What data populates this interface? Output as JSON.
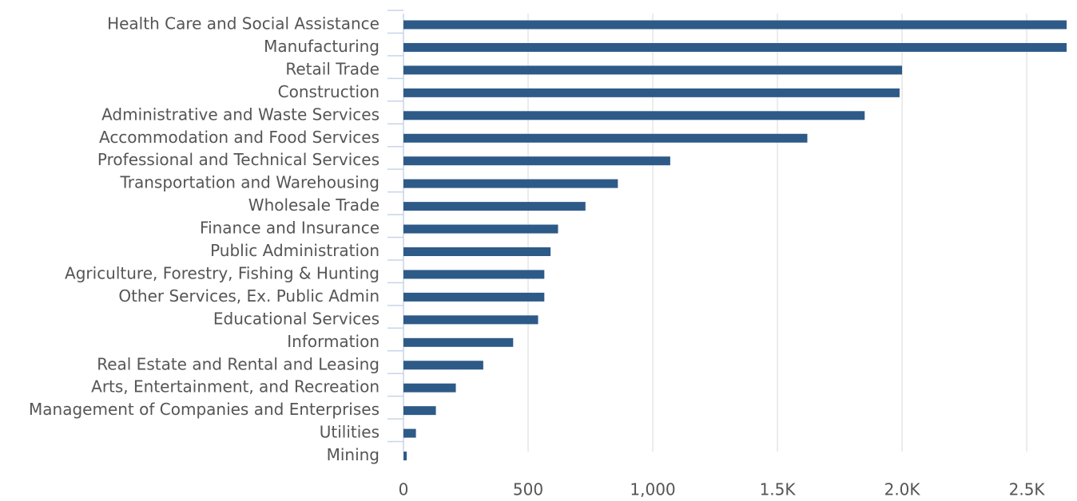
{
  "chart_data": {
    "type": "bar",
    "orientation": "horizontal",
    "categories": [
      "Health Care and Social Assistance",
      "Manufacturing",
      "Retail Trade",
      "Construction",
      "Administrative and Waste Services",
      "Accommodation and Food Services",
      "Professional and Technical Services",
      "Transportation and Warehousing",
      "Wholesale Trade",
      "Finance and Insurance",
      "Public Administration",
      "Agriculture, Forestry, Fishing & Hunting",
      "Other Services, Ex. Public Admin",
      "Educational Services",
      "Information",
      "Real Estate and Rental and Leasing",
      "Arts, Entertainment, and Recreation",
      "Management of Companies and Enterprises",
      "Utilities",
      "Mining"
    ],
    "values": [
      2660,
      2660,
      2000,
      1990,
      1850,
      1620,
      1070,
      860,
      730,
      620,
      590,
      565,
      565,
      540,
      440,
      320,
      210,
      130,
      50,
      13
    ],
    "color": "#2e5a88",
    "xlim": [
      0,
      2660
    ],
    "xticks": [
      0,
      500,
      {
        "value": 1000,
        "label": "1,000"
      },
      {
        "value": 1500,
        "label": "1.5K"
      },
      {
        "value": 2000,
        "label": "2.0K"
      },
      {
        "value": 2500,
        "label": "2.5K"
      }
    ],
    "grid": true
  }
}
